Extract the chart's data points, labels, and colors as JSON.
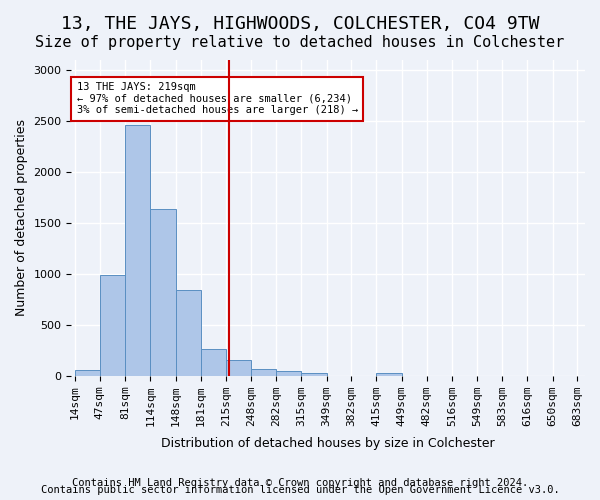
{
  "title": "13, THE JAYS, HIGHWOODS, COLCHESTER, CO4 9TW",
  "subtitle": "Size of property relative to detached houses in Colchester",
  "xlabel": "Distribution of detached houses by size in Colchester",
  "ylabel": "Number of detached properties",
  "bar_edges": [
    14,
    47,
    81,
    114,
    148,
    181,
    215,
    248,
    282,
    315,
    349,
    382,
    415,
    449,
    482,
    516,
    549,
    583,
    616,
    650,
    683
  ],
  "bar_heights": [
    55,
    990,
    2460,
    1640,
    840,
    260,
    155,
    65,
    50,
    25,
    0,
    0,
    30,
    0,
    0,
    0,
    0,
    0,
    0,
    0
  ],
  "bar_color": "#aec6e8",
  "bar_edge_color": "#5a8fc2",
  "property_size": 219,
  "vline_color": "#cc0000",
  "annotation_text": "13 THE JAYS: 219sqm\n← 97% of detached houses are smaller (6,234)\n3% of semi-detached houses are larger (218) →",
  "annotation_box_color": "#ffffff",
  "annotation_box_edge_color": "#cc0000",
  "ylim": [
    0,
    3100
  ],
  "yticks": [
    0,
    500,
    1000,
    1500,
    2000,
    2500,
    3000
  ],
  "footer1": "Contains HM Land Registry data © Crown copyright and database right 2024.",
  "footer2": "Contains public sector information licensed under the Open Government Licence v3.0.",
  "background_color": "#eef2f9",
  "plot_bg_color": "#eef2f9",
  "grid_color": "#ffffff",
  "title_fontsize": 13,
  "subtitle_fontsize": 11,
  "axis_label_fontsize": 9,
  "tick_fontsize": 8,
  "footer_fontsize": 7.5
}
